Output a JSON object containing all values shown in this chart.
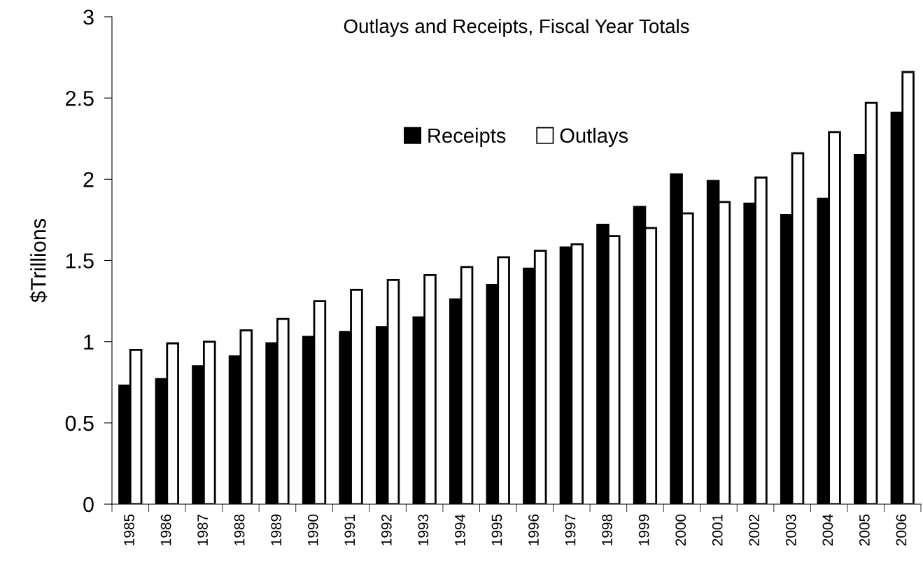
{
  "chart_data": {
    "type": "bar",
    "title": "Outlays and Receipts, Fiscal Year Totals",
    "ylabel": "$Trillions",
    "categories": [
      "1985",
      "1986",
      "1987",
      "1988",
      "1989",
      "1990",
      "1991",
      "1992",
      "1993",
      "1994",
      "1995",
      "1996",
      "1997",
      "1998",
      "1999",
      "2000",
      "2001",
      "2002",
      "2003",
      "2004",
      "2005",
      "2006"
    ],
    "series": [
      {
        "name": "Receipts",
        "color": "#000000",
        "values": [
          0.73,
          0.77,
          0.85,
          0.91,
          0.99,
          1.03,
          1.06,
          1.09,
          1.15,
          1.26,
          1.35,
          1.45,
          1.58,
          1.72,
          1.83,
          2.03,
          1.99,
          1.85,
          1.78,
          1.88,
          2.15,
          2.41
        ]
      },
      {
        "name": "Outlays",
        "color": "#ffffff",
        "values": [
          0.95,
          0.99,
          1.0,
          1.07,
          1.14,
          1.25,
          1.32,
          1.38,
          1.41,
          1.46,
          1.52,
          1.56,
          1.6,
          1.65,
          1.7,
          1.79,
          1.86,
          2.01,
          2.16,
          2.29,
          2.47,
          2.66
        ]
      }
    ],
    "ylim": [
      0,
      3
    ],
    "yticks": [
      0,
      0.5,
      1,
      1.5,
      2,
      2.5,
      3
    ],
    "grid": false,
    "legend": "top"
  }
}
